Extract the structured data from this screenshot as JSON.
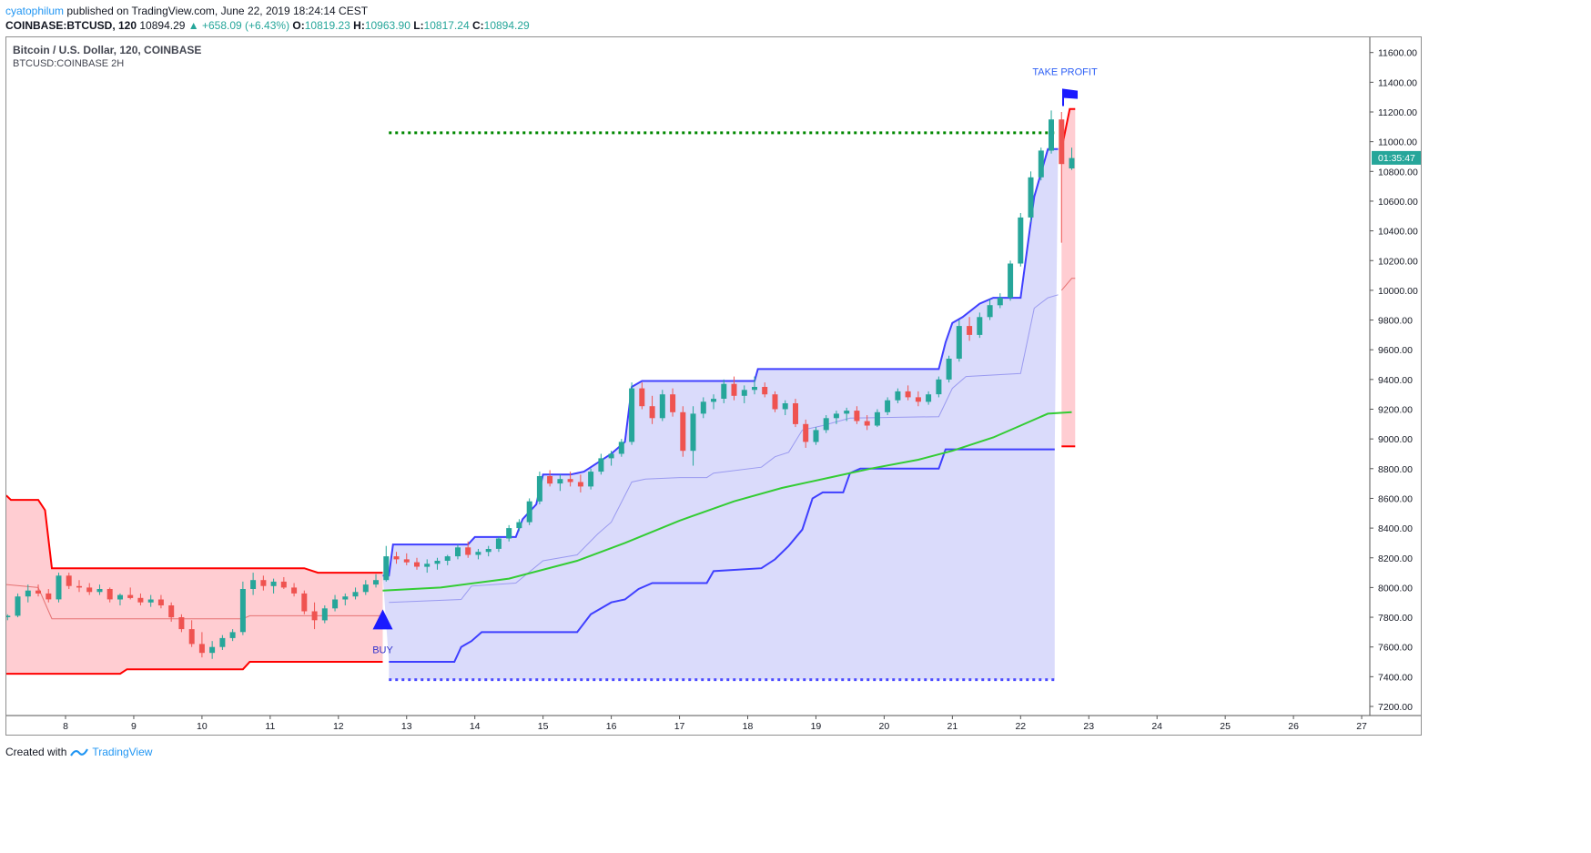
{
  "header": {
    "user": "cyatophilum",
    "published": " published on TradingView.com, June 22, 2019 18:24:14 CEST",
    "symbol": "COINBASE:BTCUSD, 120",
    "last": "10894.29",
    "change": "▲ +658.09 (+6.43%)",
    "o_label": "O:",
    "o_value": "10819.23",
    "h_label": "H:",
    "h_value": "10963.90",
    "l_label": "L:",
    "l_value": "10817.24",
    "c_label": "C:",
    "c_value": "10894.29"
  },
  "footer": {
    "created": "Created with",
    "brand": "TradingView"
  },
  "colors": {
    "up": "#26a69a",
    "down": "#ef5350",
    "band_red_fill": "#ffcdd2",
    "band_red_line": "#ff0000",
    "band_blue_fill": "#dadbfb",
    "band_blue_line": "#3f3fff",
    "ma": "#33cc33",
    "target": "#008800",
    "stop": "#4b4bff"
  },
  "chart_data": {
    "type": "candlestick",
    "title": "Bitcoin / U.S. Dollar, 120, COINBASE",
    "subtitle": "BTCUSD:COINBASE 2H",
    "x_tick_labels": [
      "8",
      "9",
      "10",
      "11",
      "12",
      "13",
      "14",
      "15",
      "16",
      "17",
      "18",
      "19",
      "20",
      "21",
      "22",
      "23",
      "24",
      "25",
      "26",
      "27"
    ],
    "y_tick_labels": [
      "7200.00",
      "7400.00",
      "7600.00",
      "7800.00",
      "8000.00",
      "8200.00",
      "8400.00",
      "8600.00",
      "8800.00",
      "9000.00",
      "9200.00",
      "9400.00",
      "9600.00",
      "9800.00",
      "10000.00",
      "10200.00",
      "10400.00",
      "10600.00",
      "10800.00",
      "11000.00",
      "11200.00",
      "11400.00",
      "11600.00"
    ],
    "ylim": [
      7080,
      11780
    ],
    "xlim": [
      7.13,
      27.2
    ],
    "price_label": "01:35:47",
    "last_close": 10894.29,
    "annotations": [
      {
        "label": "BUY",
        "x": 12.65,
        "y": 7780
      },
      {
        "label": "TAKE PROFIT",
        "x": 22.65,
        "y": 11350
      }
    ],
    "target_line": {
      "y": 11060,
      "x_from": 12.74,
      "x_to": 22.5
    },
    "stop_line": {
      "y": 7380,
      "x_from": 12.74,
      "x_to": 22.5
    },
    "red_band": {
      "upper": [
        [
          7.13,
          8620
        ],
        [
          7.2,
          8590
        ],
        [
          7.6,
          8590
        ],
        [
          7.7,
          8520
        ],
        [
          7.8,
          8130
        ],
        [
          8.5,
          8130
        ],
        [
          9.5,
          8130
        ],
        [
          10.5,
          8130
        ],
        [
          11.5,
          8130
        ],
        [
          11.7,
          8100
        ],
        [
          12.65,
          8100
        ]
      ],
      "lower": [
        [
          7.13,
          7420
        ],
        [
          8.8,
          7420
        ],
        [
          8.9,
          7450
        ],
        [
          10.6,
          7450
        ],
        [
          10.7,
          7500
        ],
        [
          12.65,
          7500
        ]
      ],
      "mid": [
        [
          7.13,
          8020
        ],
        [
          7.6,
          8000
        ],
        [
          7.8,
          7790
        ],
        [
          10.6,
          7790
        ],
        [
          10.7,
          7810
        ],
        [
          12.65,
          7810
        ]
      ]
    },
    "red_band_2": {
      "upper": [
        [
          22.6,
          10950
        ],
        [
          22.72,
          11220
        ],
        [
          22.8,
          11220
        ]
      ],
      "lower": [
        [
          22.6,
          8950
        ],
        [
          22.8,
          8950
        ]
      ],
      "mid": [
        [
          22.6,
          10000
        ],
        [
          22.75,
          10080
        ],
        [
          22.8,
          10080
        ]
      ]
    },
    "blue_band": {
      "upper": [
        [
          12.65,
          8080
        ],
        [
          12.74,
          8080
        ],
        [
          12.8,
          8290
        ],
        [
          13.9,
          8290
        ],
        [
          14.0,
          8340
        ],
        [
          14.6,
          8340
        ],
        [
          14.7,
          8460
        ],
        [
          14.9,
          8560
        ],
        [
          15.0,
          8760
        ],
        [
          15.4,
          8760
        ],
        [
          15.6,
          8780
        ],
        [
          15.8,
          8840
        ],
        [
          16.0,
          8900
        ],
        [
          16.2,
          8980
        ],
        [
          16.3,
          9350
        ],
        [
          16.45,
          9390
        ],
        [
          18.1,
          9390
        ],
        [
          18.15,
          9470
        ],
        [
          20.8,
          9470
        ],
        [
          20.9,
          9650
        ],
        [
          21.0,
          9780
        ],
        [
          21.15,
          9820
        ],
        [
          21.4,
          9910
        ],
        [
          21.6,
          9950
        ],
        [
          22.0,
          9950
        ],
        [
          22.1,
          10290
        ],
        [
          22.2,
          10630
        ],
        [
          22.4,
          10950
        ],
        [
          22.55,
          10950
        ]
      ],
      "lower": [
        [
          12.74,
          7500
        ],
        [
          13.7,
          7500
        ],
        [
          13.8,
          7600
        ],
        [
          13.95,
          7640
        ],
        [
          14.1,
          7700
        ],
        [
          15.5,
          7700
        ],
        [
          15.7,
          7820
        ],
        [
          16.0,
          7900
        ],
        [
          16.2,
          7920
        ],
        [
          16.4,
          7990
        ],
        [
          16.6,
          8030
        ],
        [
          17.4,
          8030
        ],
        [
          17.5,
          8110
        ],
        [
          18.2,
          8130
        ],
        [
          18.4,
          8190
        ],
        [
          18.6,
          8280
        ],
        [
          18.8,
          8390
        ],
        [
          18.95,
          8600
        ],
        [
          19.1,
          8640
        ],
        [
          19.4,
          8640
        ],
        [
          19.5,
          8770
        ],
        [
          19.65,
          8800
        ],
        [
          20.8,
          8800
        ],
        [
          20.9,
          8930
        ],
        [
          22.5,
          8930
        ]
      ],
      "mid": [
        [
          12.74,
          7900
        ],
        [
          13.8,
          7920
        ],
        [
          13.95,
          8010
        ],
        [
          14.6,
          8030
        ],
        [
          15.0,
          8180
        ],
        [
          15.5,
          8220
        ],
        [
          15.8,
          8360
        ],
        [
          16.0,
          8440
        ],
        [
          16.3,
          8710
        ],
        [
          16.5,
          8730
        ],
        [
          17.0,
          8740
        ],
        [
          17.4,
          8740
        ],
        [
          17.5,
          8770
        ],
        [
          18.2,
          8810
        ],
        [
          18.4,
          8880
        ],
        [
          18.6,
          8910
        ],
        [
          18.8,
          9060
        ],
        [
          19.1,
          9090
        ],
        [
          19.5,
          9140
        ],
        [
          20.8,
          9150
        ],
        [
          21.0,
          9340
        ],
        [
          21.2,
          9420
        ],
        [
          22.0,
          9440
        ],
        [
          22.2,
          9880
        ],
        [
          22.4,
          9950
        ],
        [
          22.55,
          9970
        ]
      ]
    },
    "ma_line": [
      [
        12.65,
        7980
      ],
      [
        13.5,
        8000
      ],
      [
        14.5,
        8060
      ],
      [
        15.5,
        8180
      ],
      [
        16.2,
        8300
      ],
      [
        17.0,
        8450
      ],
      [
        17.8,
        8580
      ],
      [
        18.5,
        8670
      ],
      [
        19.2,
        8740
      ],
      [
        19.8,
        8800
      ],
      [
        20.5,
        8860
      ],
      [
        21.0,
        8920
      ],
      [
        21.6,
        9010
      ],
      [
        22.0,
        9090
      ],
      [
        22.4,
        9170
      ],
      [
        22.75,
        9180
      ]
    ],
    "candles": [
      [
        7.15,
        7800,
        7820,
        7780,
        7810
      ],
      [
        7.3,
        7810,
        7960,
        7800,
        7940
      ],
      [
        7.45,
        7940,
        8020,
        7900,
        7980
      ],
      [
        7.6,
        7980,
        8020,
        7940,
        7960
      ],
      [
        7.75,
        7960,
        7990,
        7900,
        7920
      ],
      [
        7.9,
        7920,
        8100,
        7900,
        8080
      ],
      [
        8.05,
        8080,
        8100,
        7990,
        8010
      ],
      [
        8.2,
        8010,
        8050,
        7970,
        8000
      ],
      [
        8.35,
        8000,
        8030,
        7950,
        7970
      ],
      [
        8.5,
        7970,
        8020,
        7950,
        7990
      ],
      [
        8.65,
        7990,
        8000,
        7900,
        7920
      ],
      [
        8.8,
        7920,
        7960,
        7880,
        7950
      ],
      [
        8.95,
        7950,
        8000,
        7920,
        7930
      ],
      [
        9.1,
        7930,
        7960,
        7880,
        7900
      ],
      [
        9.25,
        7900,
        7950,
        7870,
        7920
      ],
      [
        9.4,
        7920,
        7950,
        7860,
        7880
      ],
      [
        9.55,
        7880,
        7900,
        7770,
        7800
      ],
      [
        9.7,
        7800,
        7820,
        7700,
        7720
      ],
      [
        9.85,
        7720,
        7780,
        7600,
        7620
      ],
      [
        10.0,
        7620,
        7700,
        7530,
        7560
      ],
      [
        10.15,
        7560,
        7640,
        7520,
        7600
      ],
      [
        10.3,
        7600,
        7680,
        7580,
        7660
      ],
      [
        10.45,
        7660,
        7720,
        7640,
        7700
      ],
      [
        10.6,
        7700,
        8040,
        7680,
        7990
      ],
      [
        10.75,
        7990,
        8100,
        7950,
        8050
      ],
      [
        10.9,
        8050,
        8080,
        7980,
        8010
      ],
      [
        11.05,
        8010,
        8060,
        7960,
        8040
      ],
      [
        11.2,
        8040,
        8070,
        7990,
        8000
      ],
      [
        11.35,
        8000,
        8030,
        7940,
        7960
      ],
      [
        11.5,
        7960,
        7980,
        7820,
        7840
      ],
      [
        11.65,
        7840,
        7900,
        7720,
        7780
      ],
      [
        11.8,
        7780,
        7880,
        7760,
        7860
      ],
      [
        11.95,
        7860,
        7950,
        7840,
        7920
      ],
      [
        12.1,
        7920,
        7960,
        7880,
        7940
      ],
      [
        12.25,
        7940,
        8000,
        7920,
        7970
      ],
      [
        12.4,
        7970,
        8050,
        7950,
        8020
      ],
      [
        12.55,
        8020,
        8090,
        8000,
        8050
      ],
      [
        12.7,
        8050,
        8280,
        8040,
        8210
      ],
      [
        12.85,
        8210,
        8240,
        8160,
        8190
      ],
      [
        13.0,
        8190,
        8230,
        8150,
        8170
      ],
      [
        13.15,
        8170,
        8200,
        8120,
        8140
      ],
      [
        13.3,
        8140,
        8190,
        8100,
        8160
      ],
      [
        13.45,
        8160,
        8200,
        8120,
        8180
      ],
      [
        13.6,
        8180,
        8220,
        8150,
        8210
      ],
      [
        13.75,
        8210,
        8290,
        8190,
        8270
      ],
      [
        13.9,
        8270,
        8310,
        8200,
        8220
      ],
      [
        14.05,
        8220,
        8260,
        8190,
        8240
      ],
      [
        14.2,
        8240,
        8280,
        8210,
        8260
      ],
      [
        14.35,
        8260,
        8340,
        8240,
        8330
      ],
      [
        14.5,
        8330,
        8420,
        8310,
        8400
      ],
      [
        14.65,
        8400,
        8460,
        8380,
        8440
      ],
      [
        14.8,
        8440,
        8600,
        8420,
        8580
      ],
      [
        14.95,
        8580,
        8780,
        8560,
        8750
      ],
      [
        15.1,
        8750,
        8790,
        8680,
        8700
      ],
      [
        15.25,
        8700,
        8760,
        8650,
        8730
      ],
      [
        15.4,
        8730,
        8780,
        8680,
        8710
      ],
      [
        15.55,
        8710,
        8760,
        8640,
        8680
      ],
      [
        15.7,
        8680,
        8800,
        8660,
        8780
      ],
      [
        15.85,
        8780,
        8900,
        8760,
        8870
      ],
      [
        16.0,
        8870,
        8920,
        8820,
        8900
      ],
      [
        16.15,
        8900,
        9000,
        8880,
        8980
      ],
      [
        16.3,
        8980,
        9380,
        8960,
        9340
      ],
      [
        16.45,
        9340,
        9380,
        9200,
        9220
      ],
      [
        16.6,
        9220,
        9290,
        9100,
        9140
      ],
      [
        16.75,
        9140,
        9330,
        9120,
        9300
      ],
      [
        16.9,
        9300,
        9340,
        9150,
        9180
      ],
      [
        17.05,
        9180,
        9220,
        8880,
        8920
      ],
      [
        17.2,
        8920,
        9220,
        8820,
        9170
      ],
      [
        17.35,
        9170,
        9280,
        9140,
        9250
      ],
      [
        17.5,
        9250,
        9300,
        9200,
        9270
      ],
      [
        17.65,
        9270,
        9400,
        9240,
        9370
      ],
      [
        17.8,
        9370,
        9420,
        9260,
        9290
      ],
      [
        17.95,
        9290,
        9360,
        9240,
        9330
      ],
      [
        18.1,
        9330,
        9420,
        9300,
        9350
      ],
      [
        18.25,
        9350,
        9380,
        9280,
        9300
      ],
      [
        18.4,
        9300,
        9320,
        9180,
        9200
      ],
      [
        18.55,
        9200,
        9260,
        9160,
        9240
      ],
      [
        18.7,
        9240,
        9270,
        9080,
        9100
      ],
      [
        18.85,
        9100,
        9130,
        8940,
        8980
      ],
      [
        19.0,
        8980,
        9080,
        8960,
        9060
      ],
      [
        19.15,
        9060,
        9160,
        9040,
        9140
      ],
      [
        19.3,
        9140,
        9190,
        9100,
        9170
      ],
      [
        19.45,
        9170,
        9210,
        9120,
        9190
      ],
      [
        19.6,
        9190,
        9220,
        9100,
        9120
      ],
      [
        19.75,
        9120,
        9160,
        9060,
        9090
      ],
      [
        19.9,
        9090,
        9200,
        9080,
        9180
      ],
      [
        20.05,
        9180,
        9280,
        9160,
        9260
      ],
      [
        20.2,
        9260,
        9340,
        9240,
        9320
      ],
      [
        20.35,
        9320,
        9360,
        9260,
        9280
      ],
      [
        20.5,
        9280,
        9320,
        9220,
        9250
      ],
      [
        20.65,
        9250,
        9320,
        9230,
        9300
      ],
      [
        20.8,
        9300,
        9420,
        9280,
        9400
      ],
      [
        20.95,
        9400,
        9560,
        9380,
        9540
      ],
      [
        21.1,
        9540,
        9800,
        9520,
        9760
      ],
      [
        21.25,
        9760,
        9820,
        9660,
        9700
      ],
      [
        21.4,
        9700,
        9850,
        9680,
        9820
      ],
      [
        21.55,
        9820,
        9940,
        9800,
        9900
      ],
      [
        21.7,
        9900,
        9980,
        9880,
        9950
      ],
      [
        21.85,
        9950,
        10200,
        9930,
        10180
      ],
      [
        22.0,
        10180,
        10520,
        10160,
        10490
      ],
      [
        22.15,
        10490,
        10800,
        10460,
        10760
      ],
      [
        22.3,
        10760,
        10960,
        10740,
        10940
      ],
      [
        22.45,
        10940,
        11210,
        10920,
        11150
      ],
      [
        22.6,
        11150,
        11200,
        10320,
        10850
      ],
      [
        22.75,
        10820,
        10960,
        10810,
        10890
      ]
    ]
  }
}
